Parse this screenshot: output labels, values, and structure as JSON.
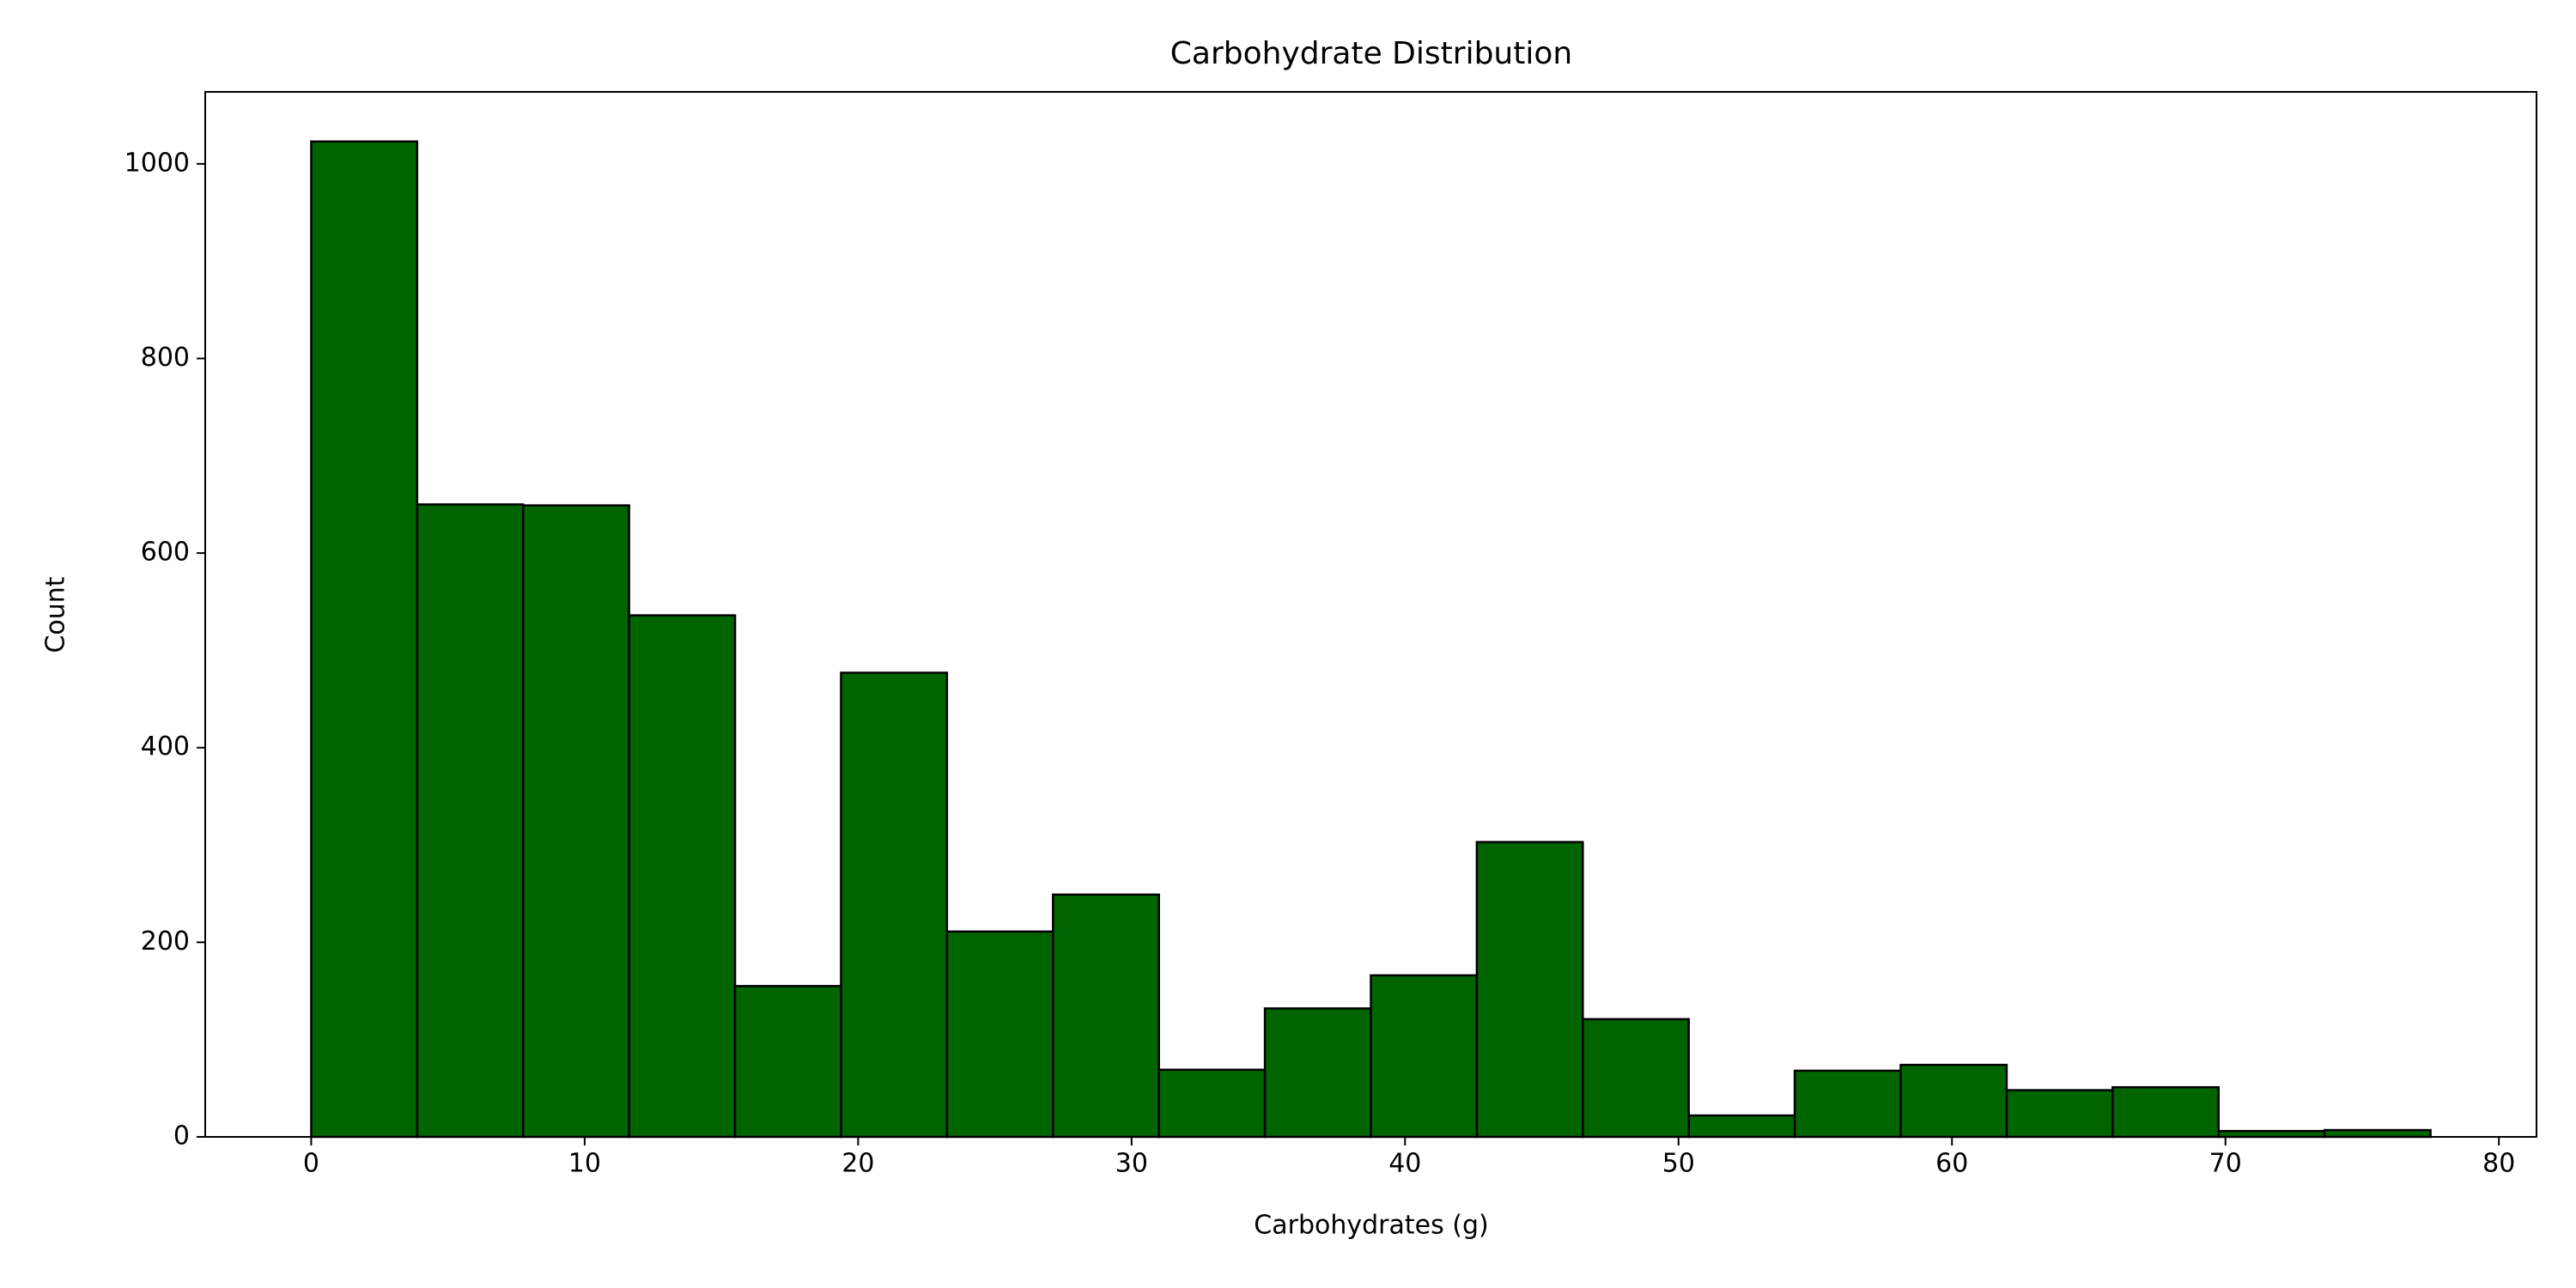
{
  "chart_data": {
    "type": "histogram",
    "title": "Carbohydrate Distribution",
    "x_label": "Carbohydrates (g)",
    "y_label": "Count",
    "bins": [
      0,
      3.875,
      7.75,
      11.625,
      15.5,
      19.375,
      23.25,
      27.125,
      31,
      34.875,
      38.75,
      42.625,
      46.5,
      50.375,
      54.25,
      58.125,
      62,
      65.875,
      69.75,
      73.625,
      77.5
    ],
    "counts": [
      1023,
      650,
      649,
      536,
      155,
      477,
      211,
      249,
      69,
      132,
      166,
      303,
      121,
      22,
      68,
      74,
      48,
      51,
      6,
      7
    ],
    "color": "#006400",
    "edgecolor": "#000000",
    "xlim": [
      -3.875,
      81.375
    ],
    "xticks": [
      0,
      10,
      20,
      30,
      40,
      50,
      60,
      70,
      80
    ],
    "ylim": [
      0,
      1074
    ],
    "yticks": [
      0,
      200,
      400,
      600,
      800,
      1000
    ],
    "grid": false
  }
}
